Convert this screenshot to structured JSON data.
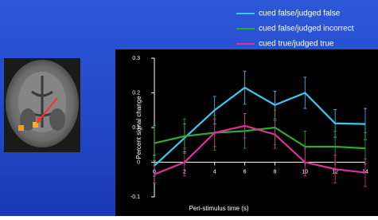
{
  "chart_data": {
    "type": "line",
    "x_label": "Peri-stimulus time (s)",
    "y_label": "Percent signal change",
    "x": [
      0,
      2,
      4,
      6,
      8,
      10,
      12,
      14
    ],
    "xlim": [
      0,
      14
    ],
    "xticks": [
      0,
      2,
      4,
      6,
      8,
      10,
      12,
      14
    ],
    "ylim": [
      -0.1,
      0.3
    ],
    "yticks": [
      -0.1,
      0,
      0.1,
      0.2,
      0.3
    ],
    "series": [
      {
        "name": "cued false/judged false",
        "color": "#3cc8f2",
        "values": [
          -0.01,
          0.07,
          0.15,
          0.215,
          0.165,
          0.2,
          0.112,
          0.11
        ],
        "errors": [
          0.03,
          0.04,
          0.04,
          0.048,
          0.04,
          0.045,
          0.04,
          0.045
        ]
      },
      {
        "name": "cued false/judged incorrect",
        "color": "#2faa2f",
        "values": [
          0.055,
          0.075,
          0.085,
          0.09,
          0.1,
          0.045,
          0.045,
          0.04
        ],
        "errors": [
          0.05,
          0.05,
          0.05,
          0.05,
          0.05,
          0.045,
          0.045,
          0.045
        ]
      },
      {
        "name": "cued true/judged true",
        "color": "#e0309a",
        "values": [
          -0.035,
          0.0,
          0.085,
          0.105,
          0.08,
          0.0,
          -0.02,
          -0.03
        ],
        "errors": [
          0.025,
          0.04,
          0.04,
          0.035,
          0.04,
          0.04,
          0.04,
          0.04
        ]
      }
    ]
  }
}
